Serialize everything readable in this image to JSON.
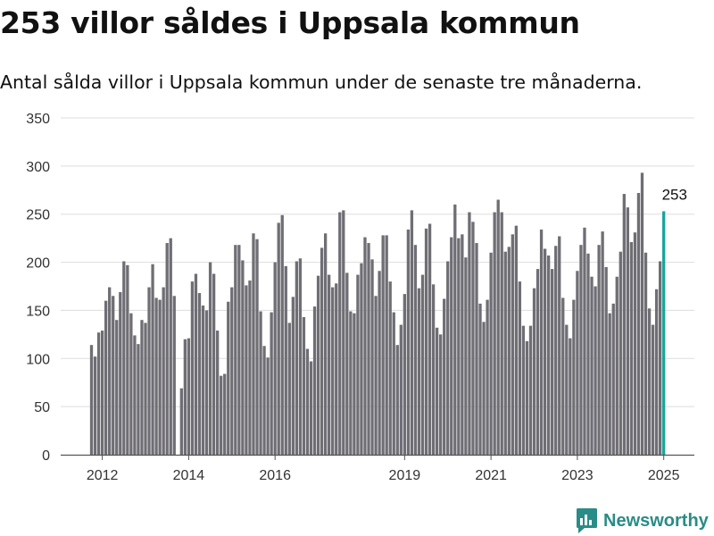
{
  "header": {
    "title": "253 villor såldes i Uppsala kommun",
    "subtitle": "Antal sålda villor i Uppsala kommun under de senaste tre månaderna."
  },
  "brand": {
    "name": "Newsworthy",
    "icon": "newsworthy-logo-icon",
    "color": "#2a8c86"
  },
  "colors": {
    "bar": "#6f6e74",
    "highlight": "#18a59c",
    "grid": "#dddddd"
  },
  "chart_data": {
    "type": "bar",
    "title": "253 villor såldes i Uppsala kommun",
    "subtitle": "Antal sålda villor i Uppsala kommun under de senaste tre månaderna.",
    "xlabel": "",
    "ylabel": "",
    "grid": true,
    "ylim": [
      0,
      350
    ],
    "yticks": [
      "0",
      "50",
      "100",
      "150",
      "200",
      "250",
      "300",
      "350"
    ],
    "xticks": [
      {
        "label": "2012",
        "x": "2012-01"
      },
      {
        "label": "2014",
        "x": "2014-01"
      },
      {
        "label": "2016",
        "x": "2016-01"
      },
      {
        "label": "2019",
        "x": "2019-01"
      },
      {
        "label": "2021",
        "x": "2021-01"
      },
      {
        "label": "2023",
        "x": "2023-01"
      },
      {
        "label": "2025",
        "x": "2025-01"
      }
    ],
    "first_period": "2011-10",
    "last_period": "2025-04",
    "values": [
      114,
      102,
      127,
      129,
      160,
      174,
      165,
      140,
      169,
      201,
      197,
      147,
      124,
      115,
      140,
      137,
      174,
      198,
      163,
      161,
      174,
      220,
      225,
      165,
      null,
      69,
      120,
      121,
      180,
      188,
      168,
      155,
      150,
      200,
      188,
      129,
      82,
      84,
      159,
      174,
      218,
      218,
      202,
      176,
      181,
      230,
      224,
      149,
      113,
      101,
      148,
      200,
      241,
      249,
      196,
      137,
      164,
      201,
      204,
      143,
      110,
      97,
      154,
      186,
      215,
      230,
      187,
      174,
      178,
      252,
      254,
      189,
      149,
      147,
      187,
      199,
      226,
      220,
      203,
      165,
      191,
      228,
      228,
      180,
      148,
      114,
      135,
      167,
      234,
      254,
      218,
      173,
      187,
      235,
      240,
      177,
      132,
      125,
      162,
      201,
      226,
      260,
      225,
      229,
      205,
      252,
      242,
      220,
      157,
      138,
      161,
      210,
      252,
      265,
      252,
      211,
      216,
      229,
      238,
      180,
      134,
      118,
      134,
      173,
      193,
      234,
      214,
      207,
      193,
      217,
      227,
      163,
      135,
      121,
      161,
      191,
      218,
      236,
      209,
      185,
      175,
      218,
      232,
      195,
      147,
      157,
      185,
      211,
      271,
      257,
      221,
      231,
      272,
      293,
      210,
      152,
      135,
      172,
      201,
      253
    ],
    "annotation": {
      "label": "253",
      "value": 253,
      "period": "2025-04"
    }
  }
}
